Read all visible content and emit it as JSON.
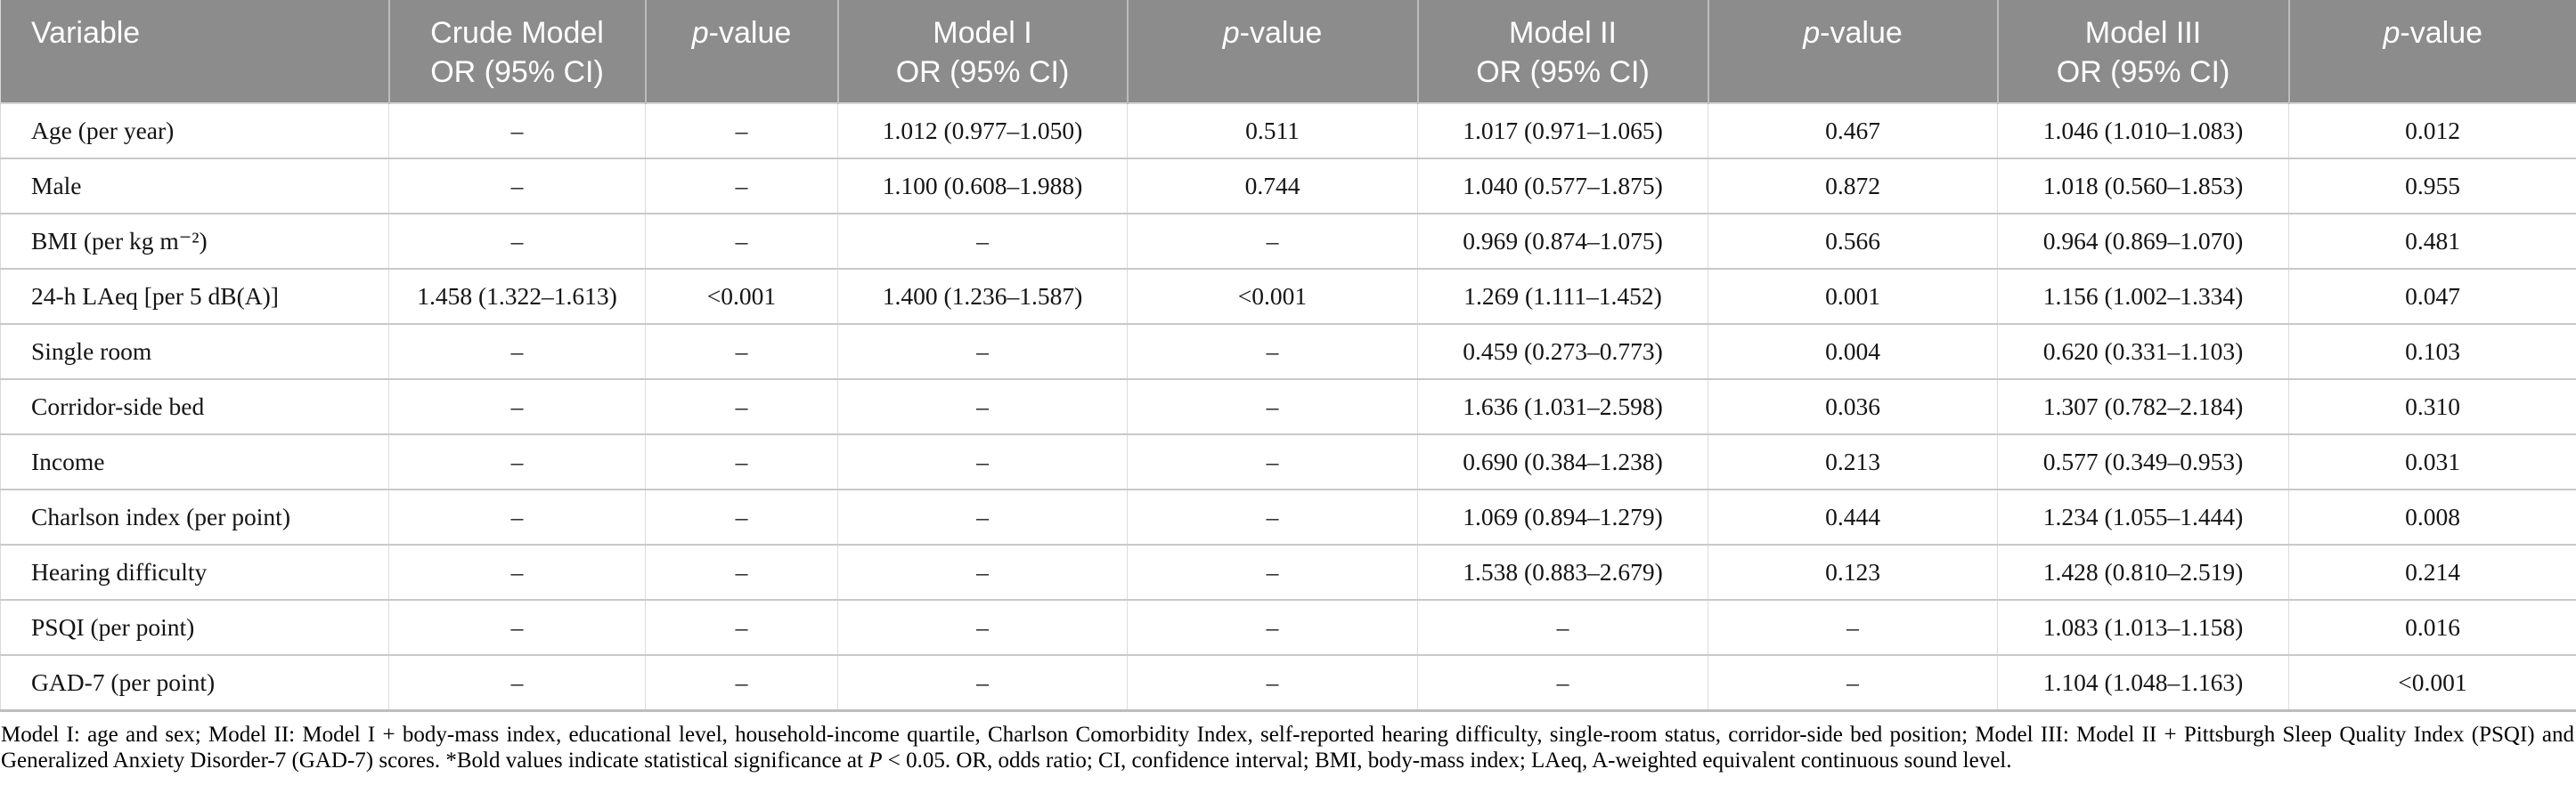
{
  "table": {
    "columns": [
      {
        "label": "Variable"
      },
      {
        "label": "Crude Model\nOR (95% CI)"
      },
      {
        "label": "p-value",
        "italic_p": true
      },
      {
        "label": "Model I\nOR (95% CI)"
      },
      {
        "label": "p-value",
        "italic_p": true
      },
      {
        "label": "Model II\nOR (95% CI)"
      },
      {
        "label": "p-value",
        "italic_p": true
      },
      {
        "label": "Model III\nOR (95% CI)"
      },
      {
        "label": "p-value",
        "italic_p": true
      }
    ],
    "rows": [
      [
        "Age (per year)",
        "–",
        "–",
        "1.012 (0.977–1.050)",
        "0.511",
        "1.017 (0.971–1.065)",
        "0.467",
        "1.046 (1.010–1.083)",
        "0.012"
      ],
      [
        "Male",
        "–",
        "–",
        "1.100 (0.608–1.988)",
        "0.744",
        "1.040 (0.577–1.875)",
        "0.872",
        "1.018 (0.560–1.853)",
        "0.955"
      ],
      [
        "BMI (per kg m⁻²)",
        "–",
        "–",
        "–",
        "–",
        "0.969 (0.874–1.075)",
        "0.566",
        "0.964 (0.869–1.070)",
        "0.481"
      ],
      [
        "24-h LAeq [per 5 dB(A)]",
        "1.458 (1.322–1.613)",
        "<0.001",
        "1.400 (1.236–1.587)",
        "<0.001",
        "1.269 (1.111–1.452)",
        "0.001",
        "1.156 (1.002–1.334)",
        "0.047"
      ],
      [
        "Single room",
        "–",
        "–",
        "–",
        "–",
        "0.459 (0.273–0.773)",
        "0.004",
        "0.620 (0.331–1.103)",
        "0.103"
      ],
      [
        "Corridor-side bed",
        "–",
        "–",
        "–",
        "–",
        "1.636 (1.031–2.598)",
        "0.036",
        "1.307 (0.782–2.184)",
        "0.310"
      ],
      [
        "Income",
        "–",
        "–",
        "–",
        "–",
        "0.690 (0.384–1.238)",
        "0.213",
        "0.577 (0.349–0.953)",
        "0.031"
      ],
      [
        "Charlson index (per point)",
        "–",
        "–",
        "–",
        "–",
        "1.069 (0.894–1.279)",
        "0.444",
        "1.234 (1.055–1.444)",
        "0.008"
      ],
      [
        "Hearing difficulty",
        "–",
        "–",
        "–",
        "–",
        "1.538 (0.883–2.679)",
        "0.123",
        "1.428 (0.810–2.519)",
        "0.214"
      ],
      [
        "PSQI (per point)",
        "–",
        "–",
        "–",
        "–",
        "–",
        "–",
        "1.083 (1.013–1.158)",
        "0.016"
      ],
      [
        "GAD-7 (per point)",
        "–",
        "–",
        "–",
        "–",
        "–",
        "–",
        "1.104 (1.048–1.163)",
        "<0.001"
      ]
    ]
  },
  "footnote": {
    "before_p": "Model I: age and sex; Model II: Model I + body-mass index, educational level, household-income quartile, Charlson Comorbidity Index, self-reported hearing difficulty, single-room status, corridor-side bed position; Model III: Model II + Pittsburgh Sleep Quality Index (PSQI) and Generalized Anxiety Disorder-7 (GAD-7) scores. *Bold values indicate statistical significance at ",
    "italic_p": "P",
    "after_p": " < 0.05. OR, odds ratio; CI, confidence interval; BMI, body-mass index; LAeq, A-weighted equivalent continuous sound level."
  },
  "colors": {
    "header_bg": "#8c8c8c",
    "header_text": "#ffffff",
    "row_border": "#c9c9c9",
    "column_border": "#dcdcdc"
  }
}
